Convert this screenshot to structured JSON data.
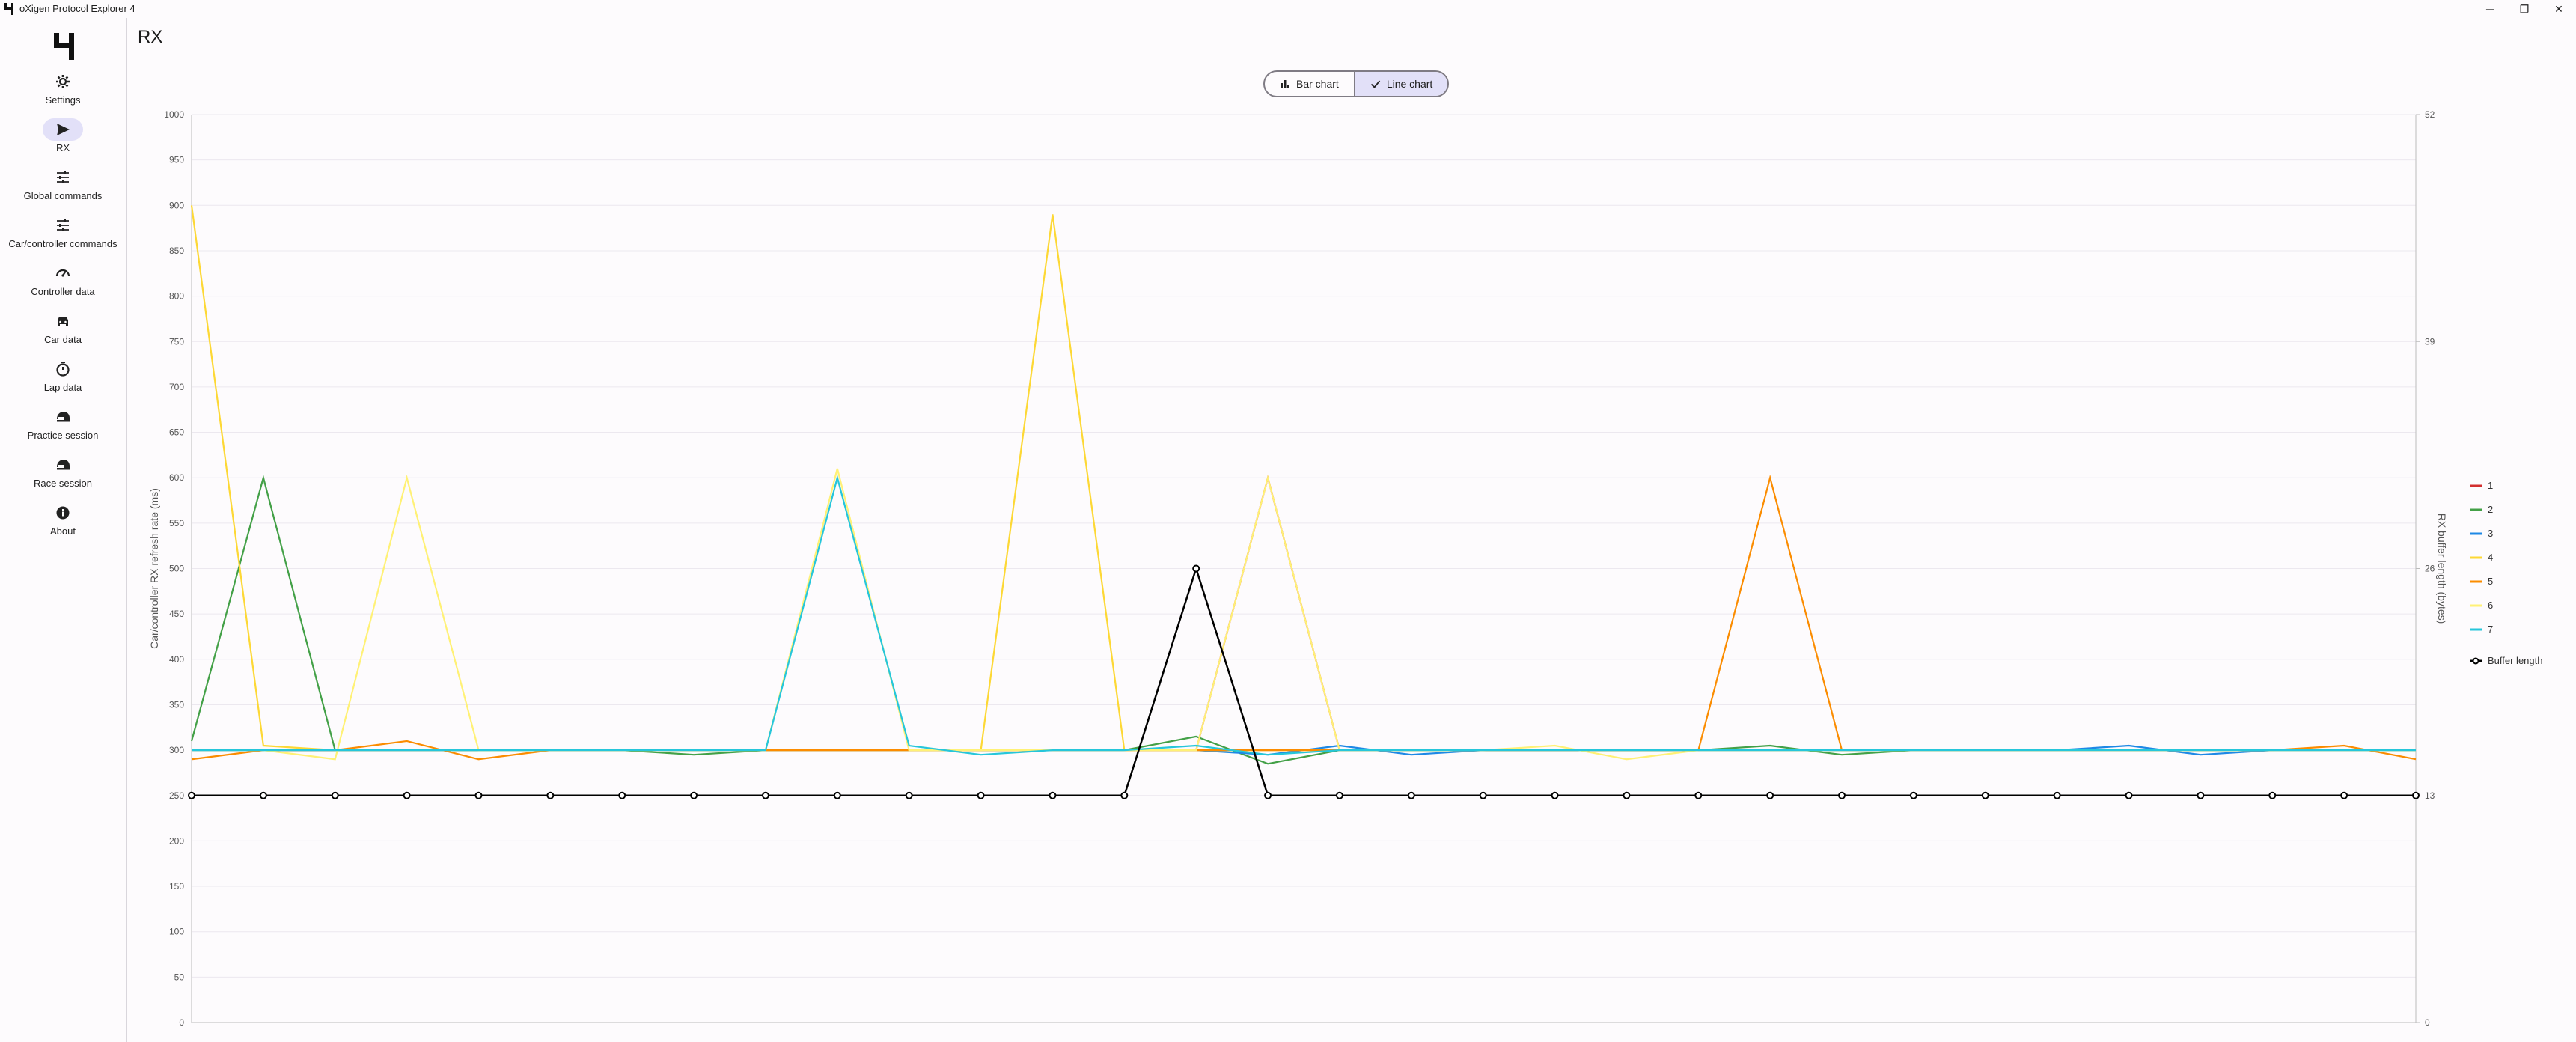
{
  "window": {
    "title": "oXigen Protocol Explorer 4",
    "minimize": "─",
    "maximize": "❐",
    "close": "✕"
  },
  "nav": [
    {
      "label": "Settings",
      "icon": "gear-icon"
    },
    {
      "label": "RX",
      "icon": "send-icon",
      "active": true
    },
    {
      "label": "Global commands",
      "icon": "sliders-icon"
    },
    {
      "label": "Car/controller commands",
      "icon": "sliders-icon"
    },
    {
      "label": "Controller data",
      "icon": "speedometer-icon"
    },
    {
      "label": "Car data",
      "icon": "car-icon"
    },
    {
      "label": "Lap data",
      "icon": "timer-icon"
    },
    {
      "label": "Practice session",
      "icon": "helmet-icon"
    },
    {
      "label": "Race session",
      "icon": "helmet-icon"
    },
    {
      "label": "About",
      "icon": "info-icon"
    }
  ],
  "page": {
    "title": "RX"
  },
  "toggle": {
    "bar_label": "Bar chart",
    "line_label": "Line chart",
    "selected": "line"
  },
  "chart_data": {
    "type": "line",
    "ylabel_left": "Car/controller RX refresh rate (ms)",
    "ylabel_right": "RX buffer length (bytes)",
    "ylim_left": [
      0,
      1000
    ],
    "yticks_left": [
      0,
      50,
      100,
      150,
      200,
      250,
      300,
      350,
      400,
      450,
      500,
      550,
      600,
      650,
      700,
      750,
      800,
      850,
      900,
      950,
      1000
    ],
    "ylim_right": [
      0,
      52
    ],
    "yticks_right": [
      0,
      13,
      26,
      39,
      52
    ],
    "grid": true,
    "legend_position": "right",
    "x_count": 32,
    "series": [
      {
        "name": "1",
        "color": "#d32f2f",
        "values": [
          300,
          300,
          300,
          300,
          300,
          300,
          300,
          300,
          300,
          300,
          300,
          300,
          300,
          300,
          300,
          600,
          300,
          300,
          300,
          300,
          300,
          300,
          300,
          300,
          300,
          300,
          300,
          300,
          300,
          300,
          300,
          300
        ]
      },
      {
        "name": "2",
        "color": "#43a047",
        "values": [
          310,
          600,
          300,
          300,
          300,
          300,
          300,
          295,
          300,
          300,
          300,
          300,
          300,
          300,
          315,
          285,
          300,
          300,
          300,
          300,
          300,
          300,
          305,
          295,
          300,
          300,
          300,
          300,
          300,
          300,
          300,
          300
        ]
      },
      {
        "name": "3",
        "color": "#1e88e5",
        "values": [
          300,
          300,
          300,
          300,
          300,
          300,
          300,
          300,
          300,
          300,
          300,
          300,
          300,
          300,
          300,
          295,
          305,
          295,
          300,
          300,
          300,
          300,
          300,
          300,
          300,
          300,
          300,
          305,
          295,
          300,
          300,
          300
        ]
      },
      {
        "name": "4",
        "color": "#fdd835",
        "values": [
          900,
          305,
          300,
          300,
          300,
          300,
          300,
          300,
          300,
          300,
          300,
          300,
          890,
          300,
          300,
          300,
          300,
          300,
          300,
          300,
          300,
          300,
          300,
          300,
          300,
          300,
          300,
          300,
          300,
          300,
          300,
          300
        ]
      },
      {
        "name": "5",
        "color": "#fb8c00",
        "values": [
          290,
          300,
          300,
          310,
          290,
          300,
          300,
          300,
          300,
          300,
          300,
          300,
          300,
          300,
          300,
          300,
          300,
          300,
          300,
          300,
          300,
          300,
          600,
          300,
          300,
          300,
          300,
          300,
          300,
          300,
          305,
          290
        ]
      },
      {
        "name": "6",
        "color": "#fff176",
        "values": [
          300,
          300,
          290,
          600,
          300,
          300,
          300,
          300,
          300,
          610,
          300,
          300,
          300,
          300,
          300,
          600,
          300,
          300,
          300,
          305,
          290,
          300,
          300,
          300,
          300,
          300,
          300,
          300,
          300,
          300,
          300,
          300
        ]
      },
      {
        "name": "7",
        "color": "#26c6da",
        "values": [
          300,
          300,
          300,
          300,
          300,
          300,
          300,
          300,
          300,
          600,
          305,
          295,
          300,
          300,
          305,
          295,
          300,
          300,
          300,
          300,
          300,
          300,
          300,
          300,
          300,
          300,
          300,
          300,
          300,
          300,
          300,
          300
        ]
      },
      {
        "name": "Buffer length",
        "color": "#000000",
        "axis": "right",
        "values": [
          13,
          13,
          13,
          13,
          13,
          13,
          13,
          13,
          13,
          13,
          13,
          13,
          13,
          13,
          26,
          13,
          13,
          13,
          13,
          13,
          13,
          13,
          13,
          13,
          13,
          13,
          13,
          13,
          13,
          13,
          13,
          13
        ]
      }
    ]
  }
}
